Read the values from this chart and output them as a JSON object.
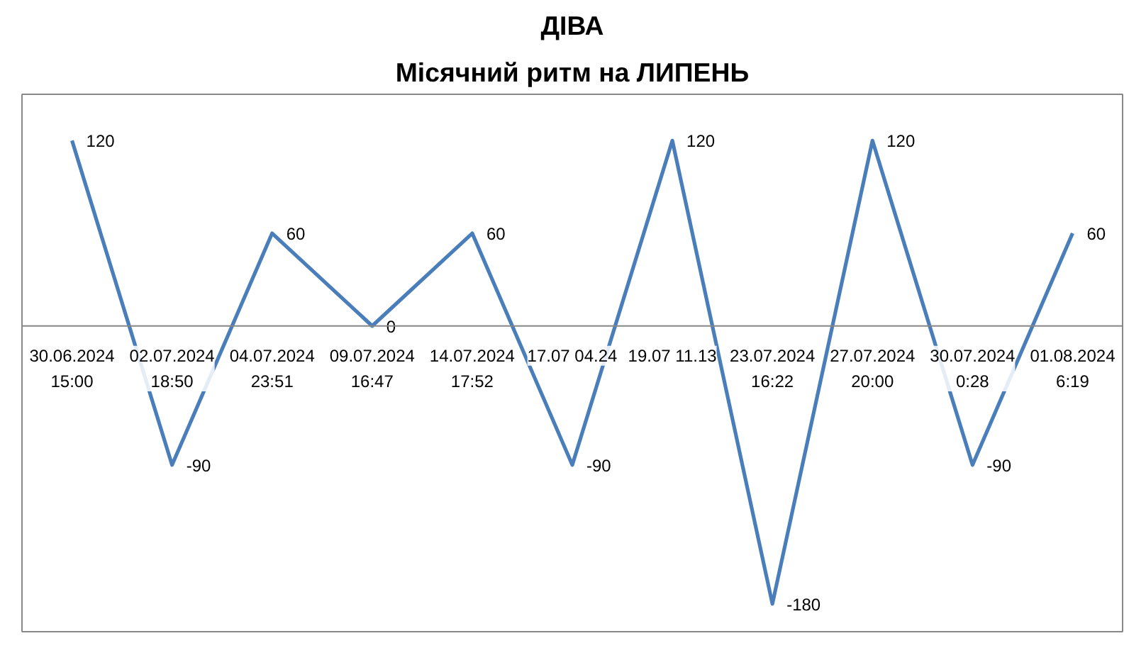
{
  "chart_data": {
    "type": "line",
    "title": "ДІВА",
    "subtitle": "Місячний ритм на ЛИПЕНЬ",
    "categories": [
      "30.06.2024\n15:00",
      "02.07.2024\n18:50",
      "04.07.2024\n23:51",
      "09.07.2024\n16:47",
      "14.07.2024\n17:52",
      "17.07 04.24",
      "19.07 11.13",
      "23.07.2024\n16:22",
      "27.07.2024\n20:00",
      "30.07.2024\n0:28",
      "01.08.2024\n6:19"
    ],
    "series": [
      {
        "color": "#4a7ebb",
        "values": [
          120,
          -90,
          60,
          0,
          60,
          -90,
          120,
          -180,
          120,
          -90,
          60
        ]
      }
    ],
    "data_labels": true,
    "grid": false,
    "marker": "none",
    "line_style": "solid"
  }
}
